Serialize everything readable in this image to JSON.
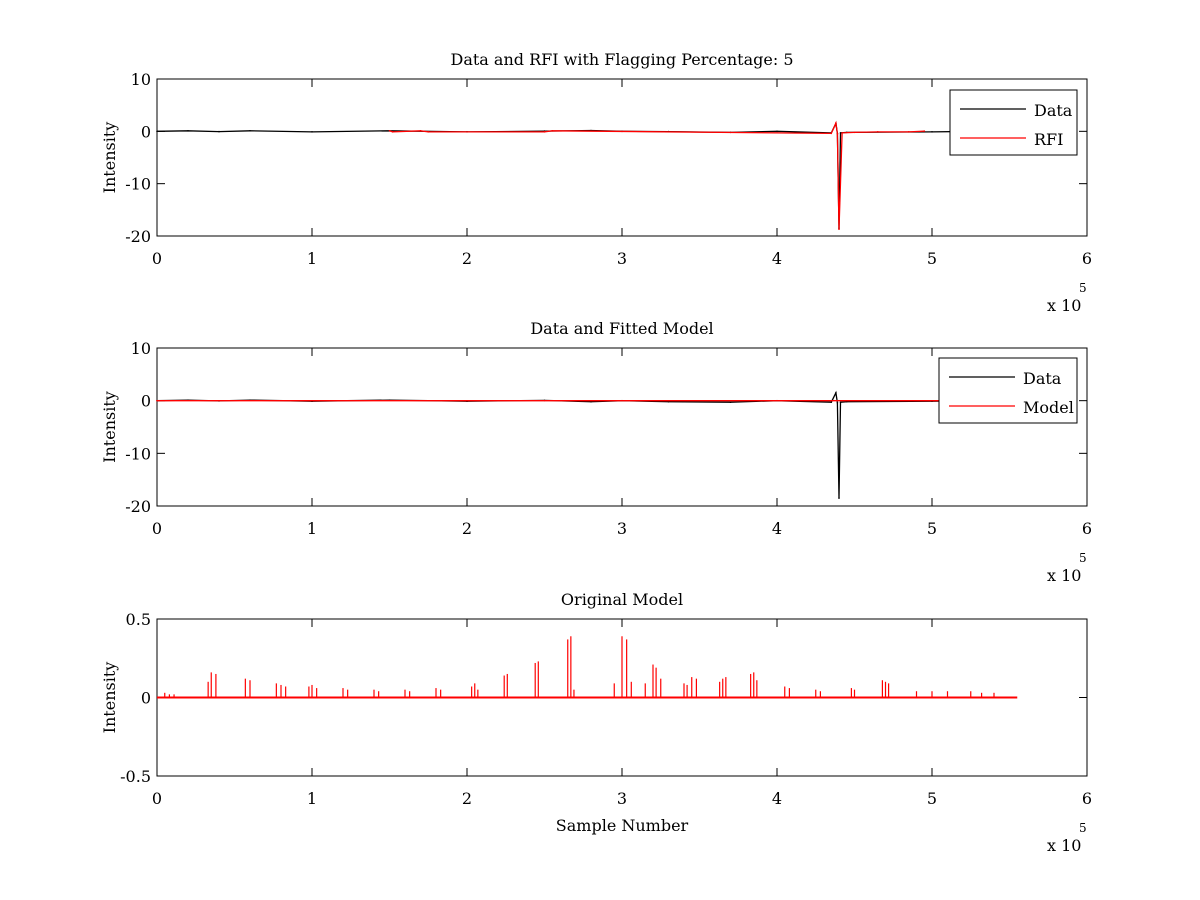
{
  "figure": {
    "background": "#ffffff"
  },
  "chart_data": [
    {
      "type": "line",
      "title": "Data and RFI with Flagging Percentage: 5",
      "xlabel": "",
      "ylabel": "Intensity",
      "xlim": [
        0,
        6
      ],
      "ylim": [
        -20,
        10
      ],
      "xticks": [
        "0",
        "1",
        "2",
        "3",
        "4",
        "5",
        "6"
      ],
      "yticks": [
        "10",
        "0",
        "-10",
        "-20"
      ],
      "x_multiplier": "x 10",
      "x_multiplier_exponent": "5",
      "grid": false,
      "legend_position": "top-right",
      "series": [
        {
          "name": "Data",
          "color": "#000000",
          "x": [
            0,
            0.2,
            0.4,
            0.6,
            1.0,
            1.5,
            2.0,
            2.5,
            2.8,
            3.0,
            3.3,
            3.7,
            4.0,
            4.35,
            4.38,
            4.39,
            4.4,
            4.41,
            4.45,
            5.0,
            5.3
          ],
          "y": [
            0,
            0.1,
            -0.05,
            0.1,
            -0.1,
            0.1,
            -0.1,
            0.05,
            0.15,
            0,
            -0.05,
            -0.2,
            0,
            -0.3,
            1.5,
            -0.4,
            -18.5,
            -0.3,
            -0.2,
            -0.1,
            0
          ]
        },
        {
          "name": "RFI",
          "color": "#ff0000",
          "x": [
            1.5,
            1.52,
            1.7,
            1.75,
            2.5,
            2.55,
            4.35,
            4.38,
            4.39,
            4.4,
            4.42,
            4.5,
            4.65,
            4.85,
            4.95
          ],
          "y": [
            0.1,
            -0.1,
            0.1,
            -0.1,
            -0.1,
            0.1,
            -0.4,
            1.6,
            -0.5,
            -18.7,
            -0.3,
            -0.2,
            -0.1,
            -0.1,
            0.05
          ]
        }
      ]
    },
    {
      "type": "line",
      "title": "Data and Fitted Model",
      "xlabel": "",
      "ylabel": "Intensity",
      "xlim": [
        0,
        6
      ],
      "ylim": [
        -20,
        10
      ],
      "xticks": [
        "0",
        "1",
        "2",
        "3",
        "4",
        "5",
        "6"
      ],
      "yticks": [
        "10",
        "0",
        "-10",
        "-20"
      ],
      "x_multiplier": "x 10",
      "x_multiplier_exponent": "5",
      "grid": false,
      "legend_position": "top-right",
      "series": [
        {
          "name": "Data",
          "color": "#000000",
          "x": [
            0,
            0.2,
            0.4,
            0.6,
            1.0,
            1.5,
            2.0,
            2.5,
            2.8,
            3.0,
            3.3,
            3.7,
            4.0,
            4.35,
            4.38,
            4.39,
            4.4,
            4.41,
            4.45,
            5.0,
            5.3
          ],
          "y": [
            0,
            0.1,
            -0.05,
            0.1,
            -0.1,
            0.1,
            -0.1,
            0.05,
            -0.2,
            0,
            -0.2,
            -0.3,
            0,
            -0.3,
            1.5,
            -0.4,
            -18.5,
            -0.3,
            -0.2,
            -0.1,
            0
          ]
        },
        {
          "name": "Model",
          "color": "#ff0000",
          "x": [
            0,
            5.55
          ],
          "y": [
            0,
            0
          ]
        }
      ]
    },
    {
      "type": "line",
      "title": "Original Model",
      "xlabel": "Sample Number",
      "ylabel": "Intensity",
      "xlim": [
        0,
        6
      ],
      "ylim": [
        -0.5,
        0.5
      ],
      "xticks": [
        "0",
        "1",
        "2",
        "3",
        "4",
        "5",
        "6"
      ],
      "yticks": [
        "0.5",
        "0",
        "-0.5"
      ],
      "x_multiplier": "x 10",
      "x_multiplier_exponent": "5",
      "grid": false,
      "legend_position": "none",
      "baseline": [
        0,
        5.55
      ],
      "series": [
        {
          "name": "",
          "color": "#ff0000",
          "x": [
            0.05,
            0.08,
            0.11,
            0.33,
            0.35,
            0.38,
            0.57,
            0.6,
            0.77,
            0.8,
            0.83,
            0.98,
            1.0,
            1.03,
            1.2,
            1.23,
            1.4,
            1.43,
            1.6,
            1.63,
            1.8,
            1.83,
            2.03,
            2.05,
            2.07,
            2.24,
            2.26,
            2.44,
            2.46,
            2.65,
            2.67,
            2.69,
            2.95,
            3.0,
            3.03,
            3.06,
            3.15,
            3.2,
            3.22,
            3.25,
            3.4,
            3.42,
            3.45,
            3.48,
            3.63,
            3.65,
            3.67,
            3.83,
            3.85,
            3.87,
            4.05,
            4.08,
            4.25,
            4.28,
            4.48,
            4.5,
            4.68,
            4.7,
            4.72,
            4.9,
            5.0,
            5.1,
            5.25,
            5.32,
            5.4
          ],
          "y": [
            0.03,
            0.02,
            0.02,
            0.1,
            0.16,
            0.15,
            0.12,
            0.11,
            0.09,
            0.08,
            0.07,
            0.07,
            0.08,
            0.06,
            0.06,
            0.05,
            0.05,
            0.04,
            0.05,
            0.04,
            0.06,
            0.05,
            0.07,
            0.09,
            0.05,
            0.14,
            0.15,
            0.22,
            0.23,
            0.37,
            0.39,
            0.05,
            0.09,
            0.39,
            0.37,
            0.1,
            0.09,
            0.21,
            0.19,
            0.12,
            0.09,
            0.08,
            0.13,
            0.12,
            0.1,
            0.12,
            0.13,
            0.15,
            0.16,
            0.11,
            0.07,
            0.06,
            0.05,
            0.04,
            0.06,
            0.05,
            0.11,
            0.1,
            0.09,
            0.04,
            0.04,
            0.04,
            0.04,
            0.03,
            0.03
          ]
        }
      ]
    }
  ]
}
